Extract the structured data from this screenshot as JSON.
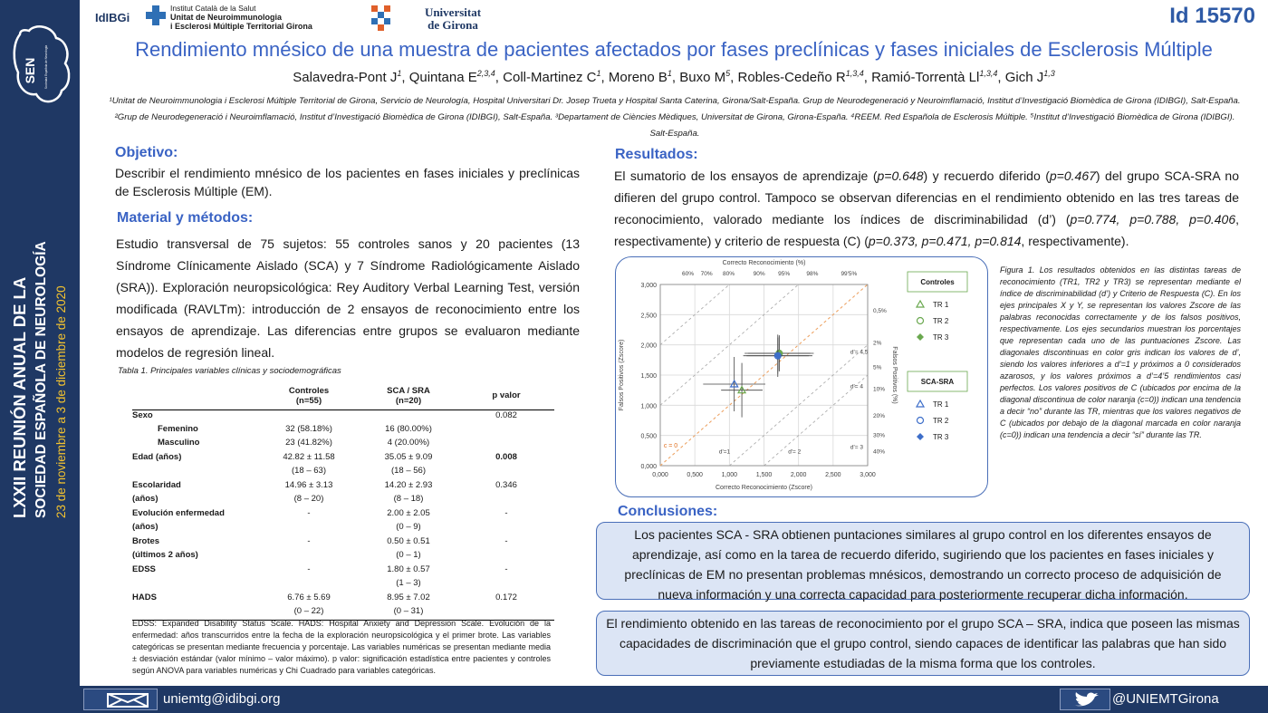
{
  "sidebar": {
    "logo_text": "SEN",
    "logo_subtext": "Sociedad Española de Neurología",
    "vertical_line1": "LXXII REUNIÓN ANUAL DE LA",
    "vertical_line2": "SOCIEDAD ESPAÑOLA DE NEUROLOGÍA",
    "vertical_dates": "23 de noviembre a 3 de diciembre de 2020"
  },
  "header": {
    "logo_idibgi": "IdIBGi",
    "logo_ics_line1": "Institut Català de la Salut",
    "logo_ics_line2": "Unitat de Neuroimmunologia",
    "logo_ics_line3": "i Esclerosi Múltiple Territorial Girona",
    "logo_udg_line1": "Universitat",
    "logo_udg_line2": "de Girona",
    "poster_id": "Id 15570",
    "title": "Rendimiento mnésico de una muestra de pacientes afectados por fases preclínicas y fases iniciales de Esclerosis Múltiple",
    "authors": [
      {
        "name": "Salavedra-Pont J",
        "sup": "1"
      },
      {
        "name": "Quintana E",
        "sup": "2,3,4"
      },
      {
        "name": "Coll-Martinez C",
        "sup": "1"
      },
      {
        "name": "Moreno B",
        "sup": "1"
      },
      {
        "name": "Buxo M",
        "sup": "5"
      },
      {
        "name": "Robles-Cedeño R",
        "sup": "1,3,4"
      },
      {
        "name": "Ramió-Torrentà Ll",
        "sup": "1,3,4"
      },
      {
        "name": "Gich J",
        "sup": "1,3"
      }
    ],
    "affiliations": "¹Unitat de Neuroimmunologia i Esclerosi Múltiple Territorial de Girona, Servicio de Neurología, Hospital Universitari Dr. Josep Trueta y Hospital Santa Caterina, Girona/Salt-España. Grup de Neurodegeneració y Neuroimflamació, Institut d’Investigació Biomèdica de Girona (IDIBGI), Salt-España.  ²Grup de Neurodegeneració i Neuroimflamació, Institut d’Investigació Biomèdica de Girona (IDIBGI), Salt-España. ³Departament de Ciències Mèdiques, Universitat de Girona, Girona-España. ⁴REEM. Red Española de Esclerosis Múltiple. ⁵Institut d’Investigació Biomèdica de Girona (IDIBGI). Salt-España."
  },
  "objetivo": {
    "title": "Objetivo:",
    "text": "Describir el rendimiento mnésico de los pacientes en fases iniciales y preclínicas de Esclerosis Múltiple (EM)."
  },
  "material": {
    "title": "Material y métodos:",
    "text": "Estudio transversal de 75 sujetos: 55 controles sanos y 20 pacientes (13 Síndrome Clínicamente Aislado (SCA) y 7 Síndrome Radiológicamente Aislado (SRA)). Exploración neuropsicológica: Rey Auditory Verbal Learning Test, versión modificada (RAVLTm): introducción de 2 ensayos de reconocimiento entre los ensayos de aprendizaje. Las diferencias entre grupos se evaluaron mediante modelos de regresión lineal."
  },
  "table": {
    "caption": "Tabla 1. Principales variables clínicas y sociodemográficas",
    "headers": {
      "col1_line1": "Controles",
      "col1_line2": "(n=55)",
      "col2_line1": "SCA / SRA",
      "col2_line2": "(n=20)",
      "col3": "p valor"
    },
    "rows": [
      {
        "label": "Sexo",
        "c1": "",
        "c2": "",
        "p": "0.082",
        "sub": false,
        "pbold": false
      },
      {
        "label": "Femenino",
        "c1": "32 (58.18%)",
        "c2": "16 (80.00%)",
        "p": "",
        "sub": true,
        "pbold": false
      },
      {
        "label": "Masculino",
        "c1": "23 (41.82%)",
        "c2": "4 (20.00%)",
        "p": "",
        "sub": true,
        "pbold": false
      },
      {
        "label": "Edad (años)",
        "c1": "42.82 ± 11.58",
        "c2": "35.05 ± 9.09",
        "p": "0.008",
        "sub": false,
        "pbold": true
      },
      {
        "label": "",
        "c1": "(18 – 63)",
        "c2": "(18 – 56)",
        "p": "",
        "sub": false,
        "pbold": false
      },
      {
        "label": "Escolaridad",
        "c1": "14.96 ± 3.13",
        "c2": "14.20 ± 2.93",
        "p": "0.346",
        "sub": false,
        "pbold": false
      },
      {
        "label": "(años)",
        "c1": "(8 – 20)",
        "c2": "(8 – 18)",
        "p": "",
        "sub": false,
        "pbold": false
      },
      {
        "label": "Evolución enfermedad",
        "c1": "-",
        "c2": "2.00 ± 2.05",
        "p": "-",
        "sub": false,
        "pbold": false
      },
      {
        "label": "(años)",
        "c1": "",
        "c2": "(0 – 9)",
        "p": "",
        "sub": false,
        "pbold": false
      },
      {
        "label": "Brotes",
        "c1": "-",
        "c2": "0.50 ± 0.51",
        "p": "-",
        "sub": false,
        "pbold": false
      },
      {
        "label": "(últimos 2 años)",
        "c1": "",
        "c2": "(0 – 1)",
        "p": "",
        "sub": false,
        "pbold": false
      },
      {
        "label": "EDSS",
        "c1": "-",
        "c2": "1.80 ± 0.57",
        "p": "-",
        "sub": false,
        "pbold": false
      },
      {
        "label": "",
        "c1": "",
        "c2": "(1 – 3)",
        "p": "",
        "sub": false,
        "pbold": false
      },
      {
        "label": "HADS",
        "c1": "6.76 ± 5.69",
        "c2": "8.95 ± 7.02",
        "p": "0.172",
        "sub": false,
        "pbold": false
      },
      {
        "label": "",
        "c1": "(0 – 22)",
        "c2": "(0 – 31)",
        "p": "",
        "sub": false,
        "pbold": false
      }
    ],
    "note": "EDSS: Expanded Disability Status Scale. HADS: Hospital Anxiety and Depression Scale. Evolución de la enfermedad: años transcurridos entre la fecha de la exploración neuropsicológica y el primer brote. Las variables categóricas se presentan mediante frecuencia y porcentaje. Las variables numéricas se presentan mediante media ± desviación estándar (valor mínimo – valor máximo). p valor: significación estadística entre pacientes y controles según ANOVA para variables numéricas y Chi Cuadrado para variables categóricas."
  },
  "resultados": {
    "title": "Resultados:",
    "segments": [
      {
        "t": "El sumatorio de los ensayos de aprendizaje (",
        "i": false
      },
      {
        "t": "p=0.648",
        "i": true
      },
      {
        "t": ") y recuerdo diferido (",
        "i": false
      },
      {
        "t": "p=0.467",
        "i": true
      },
      {
        "t": ") del grupo SCA-SRA no difieren del grupo control. Tampoco se observan diferencias en el rendimiento obtenido en las tres tareas de reconocimiento, valorado mediante los índices de discriminabilidad (d’) (",
        "i": false
      },
      {
        "t": "p=0.774, p=0.788, p=0.406",
        "i": true
      },
      {
        "t": ", respectivamente) y criterio de respuesta (C) (",
        "i": false
      },
      {
        "t": "p=0.373, p=0.471, p=0.814",
        "i": true
      },
      {
        "t": ", respectivamente).",
        "i": false
      }
    ]
  },
  "chart_data": {
    "type": "scatter",
    "title": "Correcto Reconocimiento (%)",
    "xlabel": "Correcto Reconocimiento (Zscore)",
    "ylabel": "Falsos Positivos (Zscore)",
    "y2label": "Falsos Positivos (%)",
    "xlim": [
      0,
      3
    ],
    "ylim": [
      0,
      3
    ],
    "xticks": [
      "0,000",
      "0,500",
      "1,000",
      "1,500",
      "2,000",
      "2,500",
      "3,000"
    ],
    "yticks": [
      "0,000",
      "0,500",
      "1,000",
      "1,500",
      "2,000",
      "2,500",
      "3,000"
    ],
    "top_ticks": [
      {
        "label": "60%",
        "z": 0.25
      },
      {
        "label": "70%",
        "z": 0.52
      },
      {
        "label": "80%",
        "z": 0.84
      },
      {
        "label": "90%",
        "z": 1.28
      },
      {
        "label": "95%",
        "z": 1.64
      },
      {
        "label": "98%",
        "z": 2.05
      },
      {
        "label": "99'5%",
        "z": 2.58
      }
    ],
    "right_ticks": [
      {
        "label": "0,5%",
        "z": 2.58
      },
      {
        "label": "2%",
        "z": 2.05
      },
      {
        "label": "5%",
        "z": 1.64
      },
      {
        "label": "10%",
        "z": 1.28
      },
      {
        "label": "20%",
        "z": 0.84
      },
      {
        "label": "30%",
        "z": 0.52
      },
      {
        "label": "40%",
        "z": 0.25
      }
    ],
    "diagonal_labels": [
      {
        "text": "d'= 4,5",
        "x": 2.75,
        "y": 1.85
      },
      {
        "text": "d'= 4",
        "x": 2.75,
        "y": 1.28
      },
      {
        "text": "d'= 3",
        "x": 2.75,
        "y": 0.28
      },
      {
        "text": "d'= 2",
        "x": 1.85,
        "y": 0.2
      },
      {
        "text": "d'=1",
        "x": 0.85,
        "y": 0.2
      }
    ],
    "c0_label": "c = 0",
    "legend_groups": [
      {
        "title": "Controles",
        "items": [
          "TR 1",
          "TR 2",
          "TR 3"
        ],
        "color": "#6aa84f"
      },
      {
        "title": "SCA-SRA",
        "items": [
          "TR 1",
          "TR 2",
          "TR 3"
        ],
        "color": "#3d6ec9"
      }
    ],
    "series": [
      {
        "name": "TR 1",
        "group": "Controles",
        "marker": "triangle",
        "color": "#6aa84f",
        "x": 1.18,
        "y": 1.25,
        "xerr": 0.3,
        "yerr": 0.45
      },
      {
        "name": "TR 2",
        "group": "Controles",
        "marker": "circle",
        "color": "#6aa84f",
        "x": 1.72,
        "y": 1.86,
        "xerr": 0.5,
        "yerr": 0.3
      },
      {
        "name": "TR 3",
        "group": "Controles",
        "marker": "diamond",
        "color": "#6aa84f",
        "x": 1.72,
        "y": 1.86,
        "xerr": 0.45,
        "yerr": 0.28
      },
      {
        "name": "TR 1",
        "group": "SCA-SRA",
        "marker": "triangle",
        "color": "#3d6ec9",
        "x": 1.07,
        "y": 1.35,
        "xerr": 0.45,
        "yerr": 0.45
      },
      {
        "name": "TR 2",
        "group": "SCA-SRA",
        "marker": "circle",
        "color": "#3d6ec9",
        "x": 1.7,
        "y": 1.82,
        "xerr": 0.5,
        "yerr": 0.35
      },
      {
        "name": "TR 3",
        "group": "SCA-SRA",
        "marker": "diamond",
        "color": "#3d6ec9",
        "x": 1.7,
        "y": 1.82,
        "xerr": 0.45,
        "yerr": 0.3
      }
    ]
  },
  "figure_caption": "Figura 1. Los resultados obtenidos en las distintas tareas de reconocimiento (TR1, TR2 y TR3) se representan mediante el índice de discriminabilidad (d’) y Criterio de Respuesta (C). En los ejes principales X y Y, se representan los valores Zscore de las palabras reconocidas correctamente y de los falsos positivos, respectivamente. Los ejes secundarios muestran los porcentajes que representan cada uno de las puntuaciones Zscore. Las diagonales discontinuas en color gris indican los valores de d’, siendo los valores inferiores a d’=1 y próximos a 0 considerados azarosos, y los valores próximos a d’=4’5 rendimientos casi perfectos. Los valores positivos de C (ubicados por encima de la diagonal discontinua de color naranja (c=0)) indican una tendencia a decir “no” durante las TR, mientras que los valores negativos de C (ubicados por debajo de la diagonal marcada en color naranja (c=0)) indican una tendencia a decir “sí” durante las TR.",
  "conclusiones": {
    "title": "Conclusiones:",
    "text1": "Los pacientes SCA - SRA obtienen puntaciones similares al grupo control en los diferentes ensayos de aprendizaje, así como en la tarea de recuerdo diferido, sugiriendo que los pacientes en fases iniciales y preclínicas de EM no presentan problemas mnésicos, demostrando un correcto proceso de adquisición de nueva información y una correcta capacidad para posteriormente recuperar dicha información.",
    "text2": "El rendimiento obtenido en las tareas de reconocimiento por el grupo SCA – SRA, indica que poseen las mismas capacidades de discriminación que el grupo control, siendo capaces de identificar las palabras que han sido previamente estudiadas de la misma forma que los controles."
  },
  "footer": {
    "email": "uniemtg@idibgi.org",
    "twitter": "@UNIEMTGirona",
    "email_icon": "envelope-icon",
    "twitter_icon": "bird-icon"
  },
  "colors": {
    "brand_dark": "#1f3864",
    "title_blue": "#3a63c4",
    "box_fill": "#dce5f5"
  }
}
